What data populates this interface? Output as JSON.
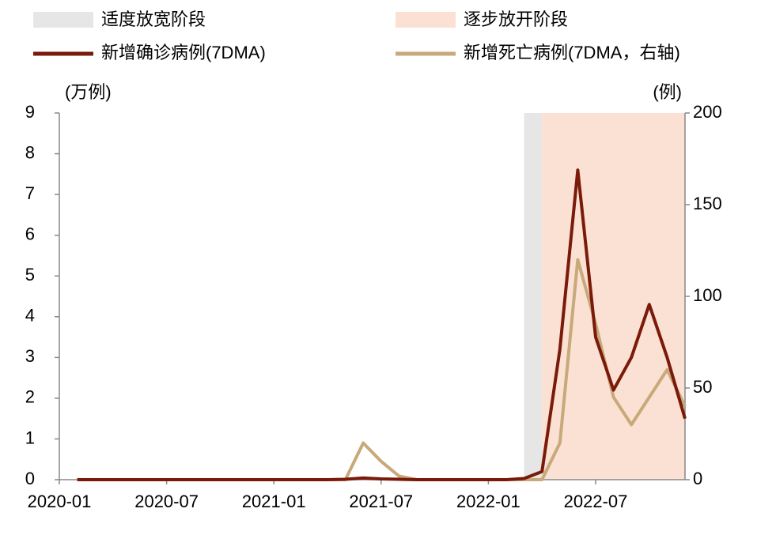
{
  "chart_data": {
    "type": "line",
    "x": [
      "2020-02",
      "2020-03",
      "2020-04",
      "2020-05",
      "2020-06",
      "2020-07",
      "2020-08",
      "2020-09",
      "2020-10",
      "2020-11",
      "2020-12",
      "2021-01",
      "2021-02",
      "2021-03",
      "2021-04",
      "2021-05",
      "2021-06",
      "2021-07",
      "2021-08",
      "2021-09",
      "2021-10",
      "2021-11",
      "2021-12",
      "2022-01",
      "2022-02",
      "2022-03",
      "2022-04",
      "2022-05",
      "2022-06",
      "2022-07",
      "2022-08",
      "2022-09",
      "2022-10",
      "2022-11",
      "2022-12"
    ],
    "series": [
      {
        "name": "新增确诊病例(7DMA)",
        "color": "#7a1a0a",
        "values": [
          0,
          0,
          0,
          0,
          0,
          0,
          0,
          0,
          0,
          0,
          0,
          0,
          0,
          0,
          0,
          0.01,
          0.04,
          0.02,
          0.01,
          0,
          0,
          0,
          0,
          0,
          0,
          0.03,
          0.2,
          3.2,
          7.6,
          3.5,
          2.2,
          3.0,
          4.3,
          3.0,
          1.5
        ]
      },
      {
        "name": "新增死亡病例(7DMA，右轴)",
        "color": "#c8a97a",
        "axis": "y2",
        "values": [
          0,
          0,
          0,
          0,
          0,
          0,
          0,
          0,
          0,
          0,
          0,
          0,
          0,
          0,
          0,
          0,
          20,
          10,
          2,
          0,
          0,
          0,
          0,
          0,
          0,
          0,
          0,
          20,
          120,
          85,
          45,
          30,
          45,
          60,
          40
        ]
      }
    ],
    "shading": [
      {
        "name": "适度放宽阶段",
        "start": "2022-03",
        "end": "2022-04",
        "color": "#e6e6e6"
      },
      {
        "name": "逐步放开阶段",
        "start": "2022-04",
        "end": "2022-12",
        "color": "#fbe1d3"
      }
    ],
    "y_label": "(万例)",
    "y2_label": "(例)",
    "xlim": [
      "2020-01",
      "2022-12"
    ],
    "xticks": [
      "2020-01",
      "2020-07",
      "2021-01",
      "2021-07",
      "2022-01",
      "2022-07"
    ],
    "ylim": [
      0,
      9
    ],
    "yticks": [
      0,
      1,
      2,
      3,
      4,
      5,
      6,
      7,
      8,
      9
    ],
    "y2lim": [
      0,
      200
    ],
    "y2ticks": [
      0,
      50,
      100,
      150,
      200
    ]
  }
}
